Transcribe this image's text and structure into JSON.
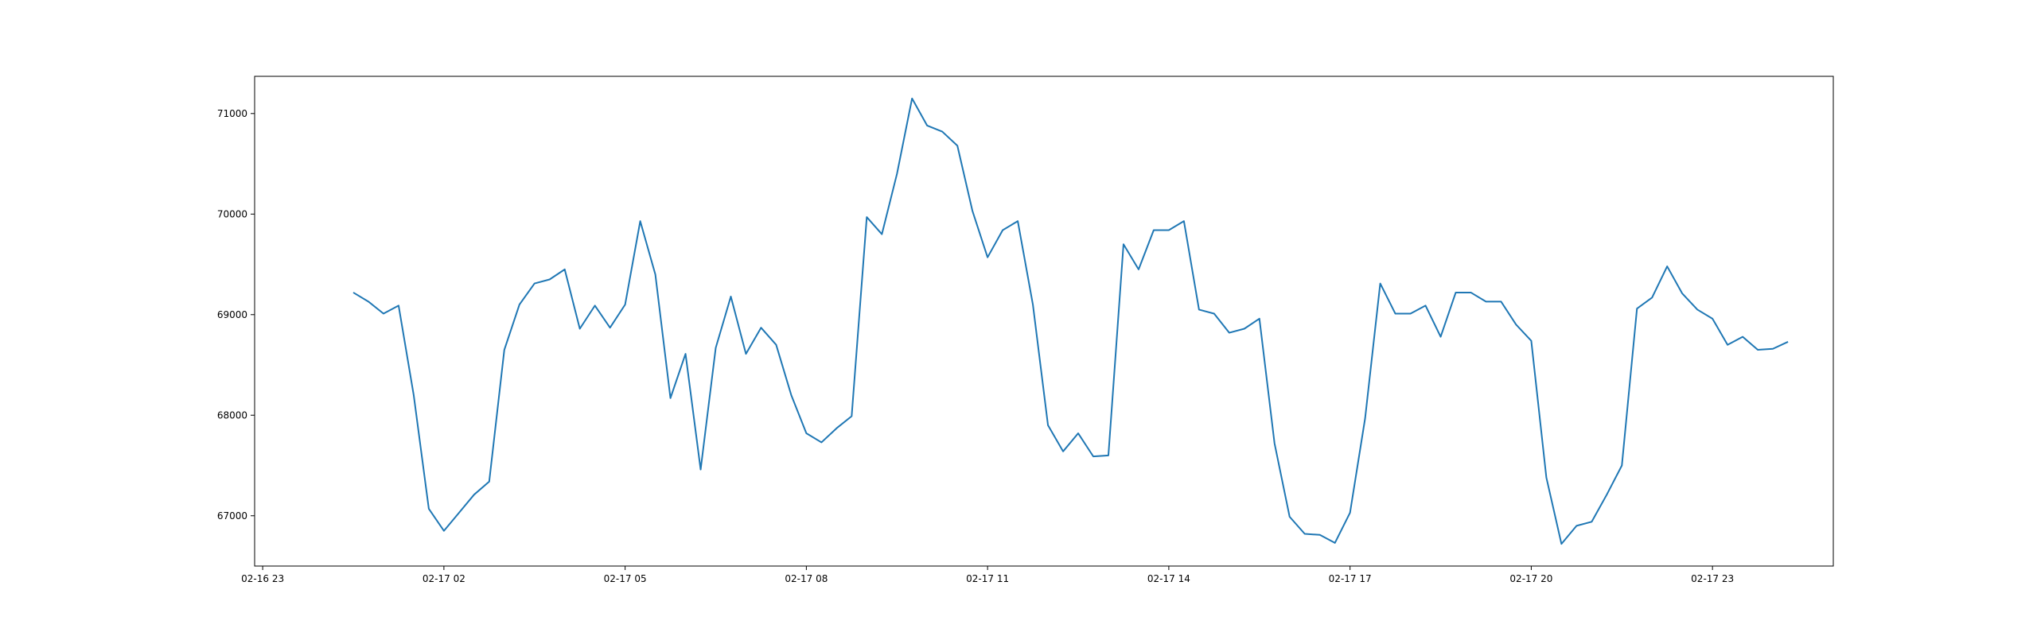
{
  "chart_data": {
    "type": "line",
    "title": "",
    "xlabel": "",
    "ylabel": "",
    "x_start": "2025-02-17 00:30",
    "x_interval_minutes": 15,
    "x_ticks": [
      {
        "time": "2025-02-16 23:00",
        "label": "02-16 23"
      },
      {
        "time": "2025-02-17 02:00",
        "label": "02-17 02"
      },
      {
        "time": "2025-02-17 05:00",
        "label": "02-17 05"
      },
      {
        "time": "2025-02-17 08:00",
        "label": "02-17 08"
      },
      {
        "time": "2025-02-17 11:00",
        "label": "02-17 11"
      },
      {
        "time": "2025-02-17 14:00",
        "label": "02-17 14"
      },
      {
        "time": "2025-02-17 17:00",
        "label": "02-17 17"
      },
      {
        "time": "2025-02-17 20:00",
        "label": "02-17 20"
      },
      {
        "time": "2025-02-17 23:00",
        "label": "02-17 23"
      }
    ],
    "xlim": [
      "2025-02-16 22:52",
      "2025-02-18 01:00"
    ],
    "ylim": [
      66500,
      71370
    ],
    "y_ticks": [
      {
        "value": 67000,
        "label": "67000"
      },
      {
        "value": 68000,
        "label": "68000"
      },
      {
        "value": 69000,
        "label": "69000"
      },
      {
        "value": 70000,
        "label": "70000"
      },
      {
        "value": 71000,
        "label": "71000"
      }
    ],
    "grid": false,
    "series": [
      {
        "color": "#1f77b4",
        "values": [
          69220,
          69130,
          69010,
          69090,
          68200,
          67070,
          66850,
          67030,
          67210,
          67340,
          68650,
          69100,
          69310,
          69350,
          69450,
          68860,
          69090,
          68870,
          69100,
          69930,
          69400,
          68170,
          68610,
          67460,
          68670,
          69180,
          68610,
          68870,
          68700,
          68200,
          67820,
          67730,
          67870,
          67990,
          69970,
          69800,
          70400,
          71150,
          70880,
          70820,
          70680,
          70030,
          69570,
          69840,
          69930,
          69100,
          67900,
          67640,
          67820,
          67590,
          67600,
          69700,
          69450,
          69840,
          69840,
          69930,
          69050,
          69010,
          68820,
          68860,
          68960,
          67720,
          66990,
          66820,
          66810,
          66730,
          67030,
          67970,
          69310,
          69010,
          69010,
          69090,
          68780,
          69220,
          69220,
          69130,
          69130,
          68900,
          68740,
          67380,
          66720,
          66900,
          66940,
          67210,
          67500,
          69060,
          69170,
          69480,
          69210,
          69050,
          68960,
          68700,
          68780,
          68650,
          68660,
          68730
        ]
      }
    ]
  }
}
